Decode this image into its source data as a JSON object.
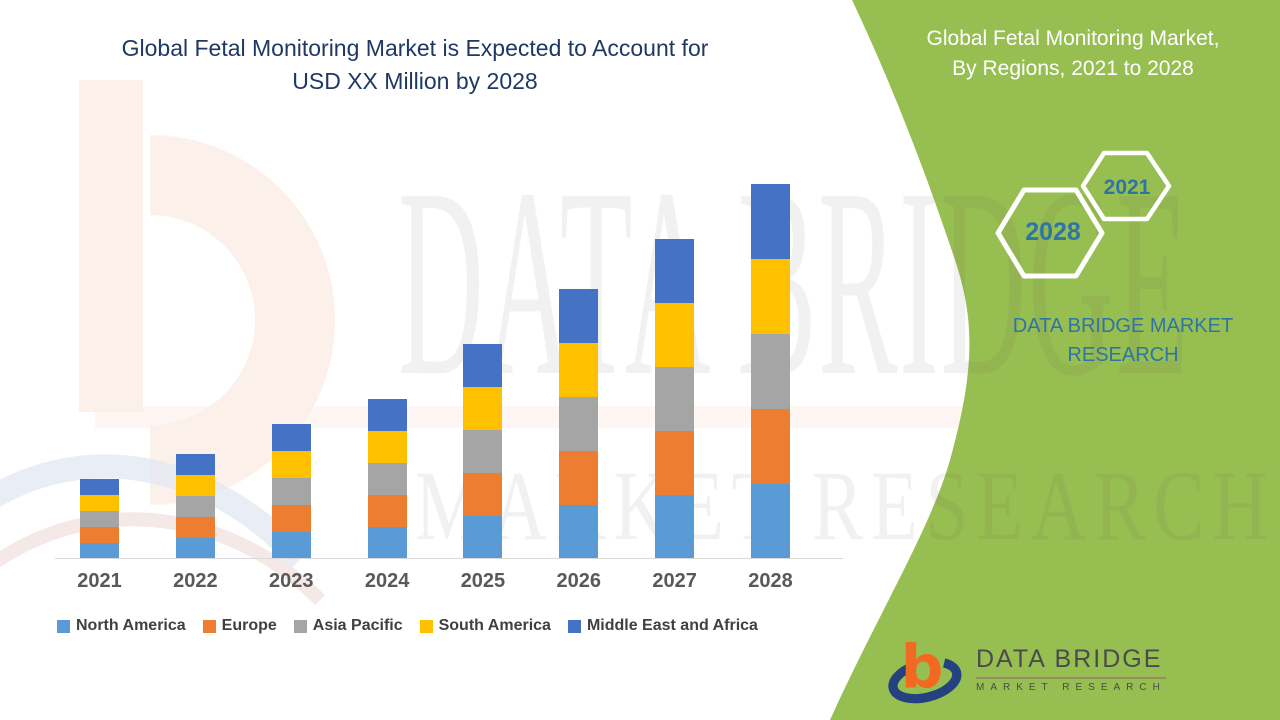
{
  "page": {
    "background": "#ffffff",
    "accent_green": "#97BE51",
    "teal": "#2E75A6",
    "title_navy": "#1F3864"
  },
  "chart_title": {
    "line1": "Global Fetal Monitoring Market is Expected to Account for",
    "line2": "USD XX Million by 2028"
  },
  "side_panel": {
    "title_line1": "Global Fetal Monitoring Market,",
    "title_line2": "By Regions, 2021 to 2028",
    "hexagons": [
      {
        "label": "2028"
      },
      {
        "label": "2021"
      }
    ],
    "brand_line1": "DATA BRIDGE MARKET",
    "brand_line2": "RESEARCH"
  },
  "watermark": {
    "line1": "DATA BRIDGE",
    "line2": "MARKET RESEARCH"
  },
  "footer_logo": {
    "icon": "data-bridge-b-swoosh-logo",
    "orange": "#F26A21",
    "navy": "#24427F",
    "brand": "DATA BRIDGE",
    "sub": "MARKET RESEARCH"
  },
  "chart_data": {
    "type": "bar",
    "stacked": true,
    "title": "Global Fetal Monitoring Market is Expected to Account for USD XX Million by 2028",
    "categories": [
      "2021",
      "2022",
      "2023",
      "2024",
      "2025",
      "2026",
      "2027",
      "2028"
    ],
    "series": [
      {
        "name": "North America",
        "color": "#5B9BD5",
        "values": [
          16,
          21,
          27,
          32,
          43,
          54,
          64,
          75
        ]
      },
      {
        "name": "Europe",
        "color": "#ED7D31",
        "values": [
          16,
          21,
          27,
          32,
          43,
          54,
          64,
          75
        ]
      },
      {
        "name": "Asia Pacific",
        "color": "#A5A5A5",
        "values": [
          16,
          21,
          27,
          32,
          43,
          54,
          64,
          75
        ]
      },
      {
        "name": "South America",
        "color": "#FFC000",
        "values": [
          16,
          21,
          27,
          32,
          43,
          54,
          64,
          75
        ]
      },
      {
        "name": "Middle East and Africa",
        "color": "#4472C4",
        "values": [
          16,
          21,
          27,
          32,
          43,
          54,
          64,
          75
        ]
      }
    ],
    "xlabel": "",
    "ylabel": "",
    "units": "USD Million (actual values not shown, masked as XX)",
    "value_scale": "relative units estimated from bar pixel heights; no numeric axis shown",
    "ylim": [
      0,
      400
    ],
    "grid": false,
    "axis_ticks_y": [],
    "legend_position": "bottom-left",
    "note": "All five regional segments are of equal height within each year; yearly totals grow from ~80 (2021) to ~375 (2028) relative units."
  }
}
